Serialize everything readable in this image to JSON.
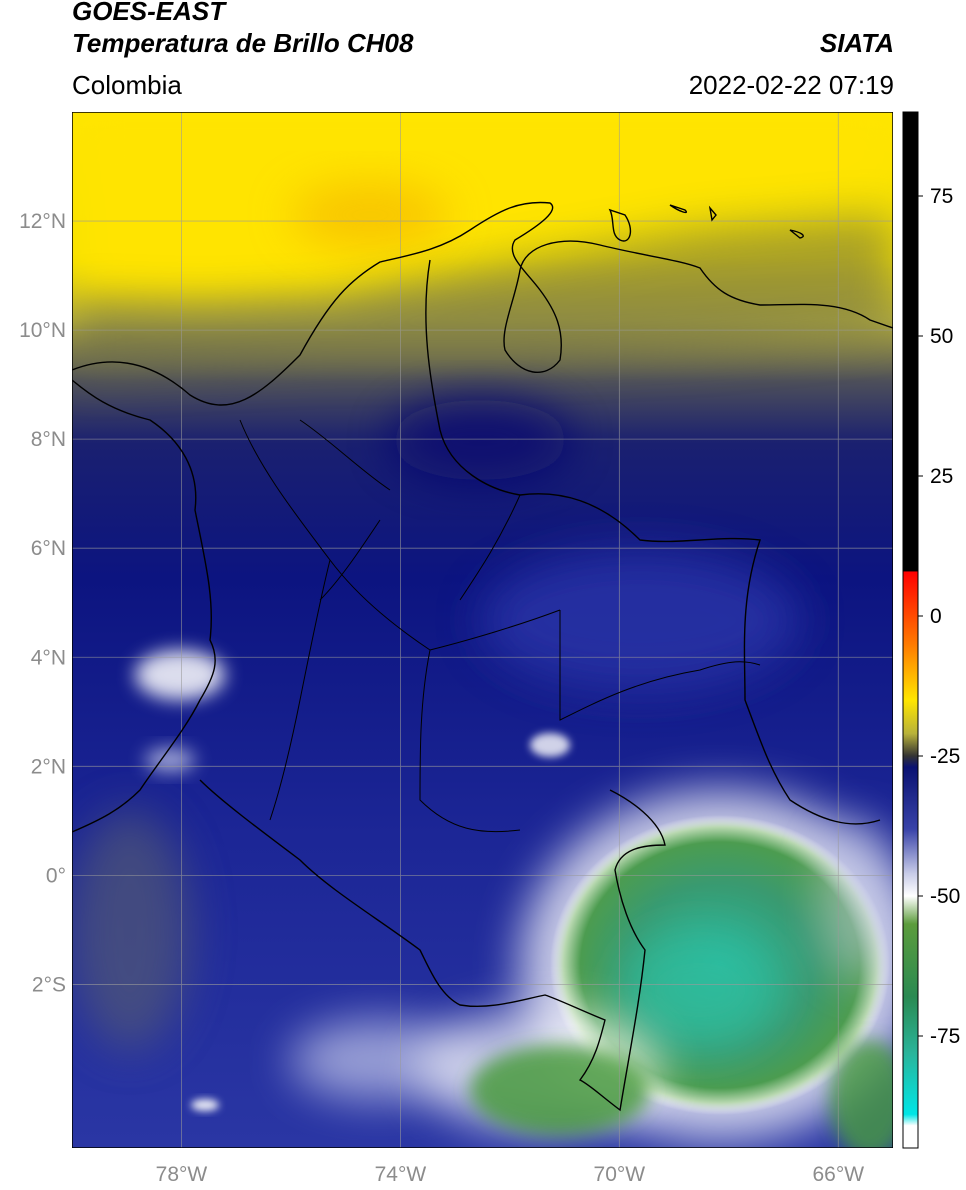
{
  "header": {
    "satellite": "GOES-EAST",
    "product": "Temperatura de Brillo CH08",
    "brand": "SIATA",
    "region": "Colombia",
    "datetime": "2022-02-22 07:19"
  },
  "map": {
    "lon_range": [
      -80,
      -65
    ],
    "lat_range": [
      -5,
      14
    ],
    "lon_ticks": [
      {
        "value": -78,
        "label": "78°W"
      },
      {
        "value": -74,
        "label": "74°W"
      },
      {
        "value": -70,
        "label": "70°W"
      },
      {
        "value": -66,
        "label": "66°W"
      }
    ],
    "lat_ticks": [
      {
        "value": 12,
        "label": "12°N"
      },
      {
        "value": 10,
        "label": "10°N"
      },
      {
        "value": 8,
        "label": "8°N"
      },
      {
        "value": 6,
        "label": "6°N"
      },
      {
        "value": 4,
        "label": "4°N"
      },
      {
        "value": 2,
        "label": "2°N"
      },
      {
        "value": 0,
        "label": "0°"
      },
      {
        "value": -2,
        "label": "2°S"
      }
    ],
    "gridlines": true
  },
  "colorbar": {
    "range": [
      -95,
      90
    ],
    "ticks": [
      {
        "value": 75,
        "label": "75"
      },
      {
        "value": 50,
        "label": "50"
      },
      {
        "value": 25,
        "label": "25"
      },
      {
        "value": 0,
        "label": "0"
      },
      {
        "value": -25,
        "label": "-25"
      },
      {
        "value": -50,
        "label": "-50"
      },
      {
        "value": -75,
        "label": "-75"
      }
    ],
    "stops": [
      {
        "value": 90,
        "color": "#000000"
      },
      {
        "value": 8,
        "color": "#000000"
      },
      {
        "value": 7.9,
        "color": "#ff0000"
      },
      {
        "value": -5,
        "color": "#ff7a00"
      },
      {
        "value": -15,
        "color": "#ffe600"
      },
      {
        "value": -21,
        "color": "#b8b23a"
      },
      {
        "value": -25,
        "color": "#333333"
      },
      {
        "value": -27,
        "color": "#0a1272"
      },
      {
        "value": -38,
        "color": "#3842a8"
      },
      {
        "value": -46,
        "color": "#c8cce8"
      },
      {
        "value": -50,
        "color": "#ffffff"
      },
      {
        "value": -55,
        "color": "#5c9c3c"
      },
      {
        "value": -68,
        "color": "#2a8a52"
      },
      {
        "value": -78,
        "color": "#2ab49a"
      },
      {
        "value": -89,
        "color": "#00e6e6"
      },
      {
        "value": -91,
        "color": "#ffffff"
      },
      {
        "value": -95,
        "color": "#ffffff"
      }
    ]
  }
}
